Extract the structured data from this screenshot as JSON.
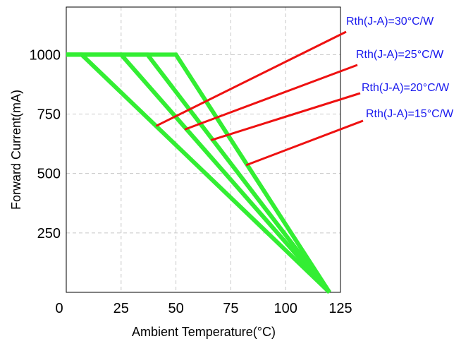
{
  "chart_data": {
    "type": "line",
    "title": "",
    "xlabel": "Ambient Temperature(°C)",
    "ylabel": "Forward Current(mA)",
    "xlim": [
      0,
      125
    ],
    "ylim": [
      0,
      1200
    ],
    "x_ticks": [
      0,
      25,
      50,
      75,
      100,
      125
    ],
    "y_ticks": [
      0,
      250,
      500,
      750,
      1000
    ],
    "y_tick_labels": [
      "",
      "250",
      "500",
      "750",
      "1000"
    ],
    "origin_label": "0",
    "grid": true,
    "series": [
      {
        "name": "Rth(J-A)=30°C/W",
        "x": [
          0,
          7,
          120
        ],
        "y": [
          1000,
          1000,
          0
        ]
      },
      {
        "name": "Rth(J-A)=25°C/W",
        "x": [
          0,
          25,
          120
        ],
        "y": [
          1000,
          1000,
          0
        ]
      },
      {
        "name": "Rth(J-A)=20°C/W",
        "x": [
          0,
          37,
          120
        ],
        "y": [
          1000,
          1000,
          0
        ]
      },
      {
        "name": "Rth(J-A)=15°C/W",
        "x": [
          0,
          50,
          120
        ],
        "y": [
          1000,
          1000,
          0
        ]
      }
    ],
    "annotations": [
      {
        "text": "Rth(J-A)=30°C/W",
        "x": 41,
        "y": 700
      },
      {
        "text": "Rth(J-A)=25°C/W",
        "x": 54,
        "y": 685
      },
      {
        "text": "Rth(J-A)=20°C/W",
        "x": 66,
        "y": 640
      },
      {
        "text": "Rth(J-A)=15°C/W",
        "x": 82,
        "y": 535
      }
    ],
    "colors": {
      "series": "#33ee33",
      "leader": "#ee1111",
      "annotation_text": "#1a1aee",
      "grid": "#c8c8c8",
      "axis": "#000000"
    }
  }
}
